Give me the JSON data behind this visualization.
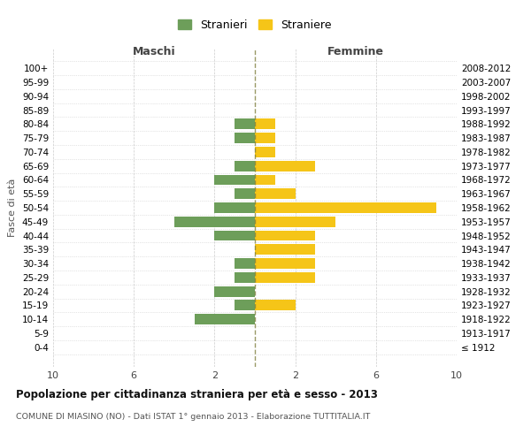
{
  "age_groups": [
    "100+",
    "95-99",
    "90-94",
    "85-89",
    "80-84",
    "75-79",
    "70-74",
    "65-69",
    "60-64",
    "55-59",
    "50-54",
    "45-49",
    "40-44",
    "35-39",
    "30-34",
    "25-29",
    "20-24",
    "15-19",
    "10-14",
    "5-9",
    "0-4"
  ],
  "birth_years": [
    "≤ 1912",
    "1913-1917",
    "1918-1922",
    "1923-1927",
    "1928-1932",
    "1933-1937",
    "1938-1942",
    "1943-1947",
    "1948-1952",
    "1953-1957",
    "1958-1962",
    "1963-1967",
    "1968-1972",
    "1973-1977",
    "1978-1982",
    "1983-1987",
    "1988-1992",
    "1993-1997",
    "1998-2002",
    "2003-2007",
    "2008-2012"
  ],
  "males": [
    0,
    0,
    0,
    0,
    1,
    1,
    0,
    1,
    2,
    1,
    2,
    4,
    2,
    0,
    1,
    1,
    2,
    1,
    3,
    0,
    0
  ],
  "females": [
    0,
    0,
    0,
    0,
    1,
    1,
    1,
    3,
    1,
    2,
    9,
    4,
    3,
    3,
    3,
    3,
    0,
    2,
    0,
    0,
    0
  ],
  "male_color": "#6d9e5a",
  "female_color": "#f5c518",
  "title": "Popolazione per cittadinanza straniera per età e sesso - 2013",
  "subtitle": "COMUNE DI MIASINO (NO) - Dati ISTAT 1° gennaio 2013 - Elaborazione TUTTITALIA.IT",
  "xlabel_left": "Maschi",
  "xlabel_right": "Femmine",
  "ylabel_left": "Fasce di età",
  "legend_male": "Stranieri",
  "legend_female": "Straniere",
  "xlim": 10,
  "background_color": "#ffffff",
  "grid_color": "#cccccc"
}
